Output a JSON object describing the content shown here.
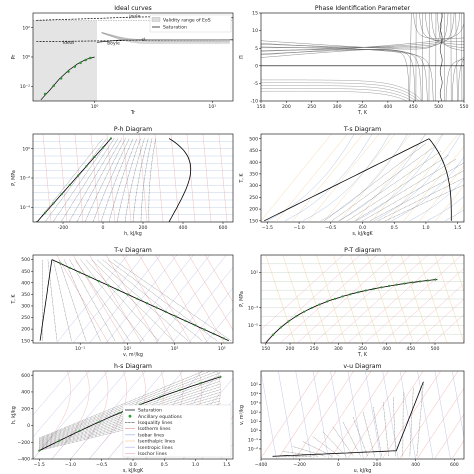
{
  "chart_data": [
    {
      "id": "ideal",
      "type": "line",
      "title": "Ideal curves",
      "xlabel": "Tr",
      "ylabel": "Pr",
      "xscale": "log",
      "yscale": "log",
      "xlim": [
        0.3,
        15
      ],
      "ylim": [
        0.001,
        1000.0
      ],
      "xticks": [
        {
          "v": 1,
          "t": "10⁰"
        },
        {
          "v": 10,
          "t": "10¹"
        }
      ],
      "yticks": [
        {
          "v": 0.01,
          "t": "10⁻²"
        },
        {
          "v": 1,
          "t": "10⁰"
        },
        {
          "v": 100,
          "t": "10²"
        }
      ],
      "shade": {
        "x": [
          0.3,
          1.05
        ],
        "y": [
          0.001,
          300
        ]
      },
      "annotations": [
        {
          "text": "joule",
          "x": 2.2,
          "y": 500
        },
        {
          "text": "ideal",
          "x": 0.6,
          "y": 8
        },
        {
          "text": "boyle",
          "x": 1.45,
          "y": 7
        },
        {
          "text": "cl",
          "x": 2.6,
          "y": 12
        }
      ],
      "legend": {
        "placement": "top-right",
        "entries": [
          {
            "label": "Validity range of EoS",
            "style": "shade",
            "color": "#dddddd"
          },
          {
            "label": "Saturation",
            "style": "line",
            "color": "#000000"
          }
        ]
      },
      "series": [
        {
          "style": "solid",
          "color": "#000000",
          "x": [
            0.35,
            0.42,
            0.5,
            0.6,
            0.72,
            0.85,
            1.0
          ],
          "y": [
            0.0012,
            0.006,
            0.03,
            0.12,
            0.35,
            0.7,
            1.0
          ]
        },
        {
          "style": "dashed",
          "color": "#000000",
          "x": [
            0.32,
            0.7,
            1.5,
            3,
            6,
            12,
            15
          ],
          "y": [
            11,
            12,
            13,
            13.8,
            14.5,
            15,
            15
          ]
        },
        {
          "style": "dashed",
          "color": "#000000",
          "x": [
            0.32,
            1,
            2,
            3.5,
            5,
            7,
            10,
            15
          ],
          "y": [
            320,
            420,
            520,
            560,
            580,
            560,
            520,
            470
          ]
        },
        {
          "style": "solid",
          "color": "#000000",
          "x": [
            1.05,
            1.6,
            2.5,
            4,
            6,
            9,
            12,
            15
          ],
          "y": [
            10,
            14,
            15,
            15,
            15,
            15,
            15,
            15
          ]
        }
      ],
      "markers": {
        "color": "#2ca02c",
        "x": [
          0.38,
          0.45,
          0.52,
          0.6,
          0.68,
          0.76,
          0.84,
          0.92
        ],
        "y": [
          0.003,
          0.011,
          0.035,
          0.1,
          0.22,
          0.4,
          0.62,
          0.85
        ]
      }
    },
    {
      "id": "phase",
      "type": "line",
      "title": "Phase Identification Parameter",
      "xlabel": "T, K",
      "ylabel": "Π",
      "xlim": [
        150,
        550
      ],
      "ylim": [
        -10,
        15
      ],
      "xticks": [
        150,
        200,
        250,
        300,
        350,
        400,
        450,
        500,
        550
      ],
      "yticks": [
        -10,
        -5,
        0,
        5,
        10,
        15
      ]
    },
    {
      "id": "ph",
      "type": "line",
      "title": "P-h Diagram",
      "xlabel": "h, kJ/kg",
      "ylabel": "P, MPa",
      "xlim": [
        -350,
        650
      ],
      "yscale": "log",
      "ylim": [
        1e-05,
        10
      ],
      "xticks": [
        -200,
        0,
        200,
        400,
        600
      ],
      "yticks": [
        {
          "v": 1,
          "t": "10⁰"
        },
        {
          "v": 0.01,
          "t": "10⁻²"
        },
        {
          "v": 0.0001,
          "t": "10⁻⁴"
        }
      ]
    },
    {
      "id": "ts",
      "type": "line",
      "title": "T-s Diagram",
      "xlabel": "s, kJ/kgK",
      "ylabel": "T, K",
      "xlim": [
        -1.6,
        1.6
      ],
      "ylim": [
        145,
        520
      ],
      "xticks": [
        -1.5,
        -1.0,
        -0.5,
        0.0,
        0.5,
        1.0,
        1.5
      ],
      "xticklabels": [
        "−1.5",
        "−1.0",
        "−0.5",
        "0.0",
        "0.5",
        "1.0",
        "1.5"
      ],
      "yticks": [
        150,
        200,
        250,
        300,
        350,
        400,
        450,
        500
      ]
    },
    {
      "id": "tv",
      "type": "line",
      "title": "T-v Diagram",
      "xlabel": "v, m³/kg",
      "ylabel": "T, K",
      "xscale": "log",
      "xlim": [
        0.001,
        300000
      ],
      "ylim": [
        140,
        520
      ],
      "xticks": [
        {
          "v": 0.1,
          "t": "10⁻¹"
        },
        {
          "v": 10,
          "t": "10¹"
        },
        {
          "v": 1000,
          "t": "10³"
        },
        {
          "v": 100000,
          "t": "10⁵"
        }
      ],
      "yticks": [
        150,
        200,
        250,
        300,
        350,
        400,
        450,
        500
      ]
    },
    {
      "id": "pt",
      "type": "line",
      "title": "P-T diagram",
      "xlabel": "T, K",
      "ylabel": "P, MPa",
      "xlim": [
        140,
        560
      ],
      "yscale": "log",
      "ylim": [
        1e-07,
        1000
      ],
      "xticks": [
        150,
        200,
        250,
        300,
        350,
        400,
        450,
        500
      ],
      "yticks": [
        {
          "v": 10,
          "t": "10¹"
        },
        {
          "v": 0.001,
          "t": "10⁻³"
        },
        {
          "v": 1e-05,
          "t": "10⁻⁵"
        }
      ]
    },
    {
      "id": "hs",
      "type": "line",
      "title": "h-s Diagram",
      "xlabel": "s, kJ/kgK",
      "ylabel": "h, kJ/kg",
      "xlim": [
        -1.6,
        1.6
      ],
      "ylim": [
        -400,
        650
      ],
      "xticks": [
        -1.5,
        -1.0,
        -0.5,
        0.0,
        0.5,
        1.0,
        1.5
      ],
      "xticklabels": [
        "−1.5",
        "−1.0",
        "−0.5",
        "0.0",
        "0.5",
        "1.0",
        "1.5"
      ],
      "yticks": [
        -400,
        -200,
        0,
        200,
        400,
        600
      ],
      "yticklabels": [
        "−400",
        "−200",
        "0",
        "200",
        "400",
        "600"
      ],
      "legend": {
        "placement": "lower-right",
        "entries": [
          {
            "label": "Saturation",
            "style": "line",
            "color": "#000000"
          },
          {
            "label": "Ancillary equations",
            "style": "marker",
            "color": "#2ca02c"
          },
          {
            "label": "Isoquality lines",
            "style": "dotted",
            "color": "#333333"
          },
          {
            "label": "Isotherm lines",
            "style": "line",
            "color": "#e89a9a"
          },
          {
            "label": "Isobar lines",
            "style": "line",
            "color": "#9db7e0"
          },
          {
            "label": "Isenthalpic lines",
            "style": "line",
            "color": "#f2cfa0"
          },
          {
            "label": "Isentropic lines",
            "style": "line",
            "color": "#b9b9e8"
          },
          {
            "label": "Isochor lines",
            "style": "line",
            "color": "#f0b0c0"
          }
        ]
      }
    },
    {
      "id": "vu",
      "type": "line",
      "title": "v-u Diagram",
      "xlabel": "u, kJ/kg",
      "ylabel": "v, m³/kg",
      "xlim": [
        -400,
        650
      ],
      "yscale": "log",
      "ylim": [
        0.0008,
        3000000
      ],
      "xticks": [
        -400,
        -200,
        0,
        200,
        400,
        600
      ],
      "xticklabels": [
        "−400",
        "−200",
        "0",
        "200",
        "400",
        "600"
      ],
      "yticks": [
        {
          "v": 100000,
          "t": "10⁵"
        },
        {
          "v": 10000,
          "t": "10⁴"
        },
        {
          "v": 1000,
          "t": "10³"
        },
        {
          "v": 100,
          "t": "10²"
        },
        {
          "v": 10,
          "t": "10¹"
        },
        {
          "v": 1,
          "t": "10⁰"
        },
        {
          "v": 0.1,
          "t": "10⁻¹"
        },
        {
          "v": 0.01,
          "t": "10⁻²"
        }
      ]
    }
  ]
}
